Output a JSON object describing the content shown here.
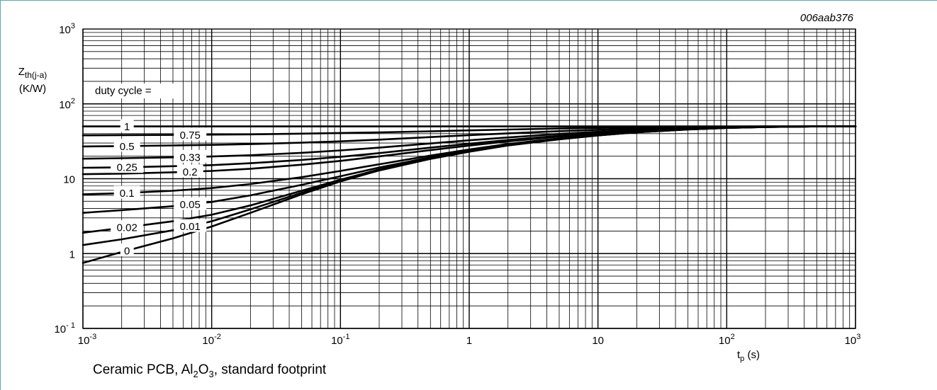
{
  "chart_data": {
    "type": "line",
    "figure_id": "006aab376",
    "caption": {
      "pre": "Ceramic PCB, Al",
      "sub1": "2",
      "mid": "O",
      "sub2": "3",
      "post": ", standard footprint"
    },
    "ylabel": {
      "line1_base": "Z",
      "line1_sub": "th(j-a)",
      "line2": "(K/W)"
    },
    "xlabel": {
      "base": "t",
      "sub": "p",
      "suffix": " (s)"
    },
    "x_scale": "log",
    "y_scale": "log",
    "xlim": [
      0.001,
      1000
    ],
    "ylim": [
      0.1,
      1000
    ],
    "grid": true,
    "x_ticks": [
      {
        "v": 0.001,
        "base": "10",
        "exp": "-3"
      },
      {
        "v": 0.01,
        "base": "10",
        "exp": "-2"
      },
      {
        "v": 0.1,
        "base": "10",
        "exp": "-1"
      },
      {
        "v": 1,
        "base": "1",
        "exp": ""
      },
      {
        "v": 10,
        "base": "10",
        "exp": ""
      },
      {
        "v": 100,
        "base": "10",
        "exp": "2"
      },
      {
        "v": 1000,
        "base": "10",
        "exp": "3"
      }
    ],
    "y_ticks": [
      {
        "v": 1000,
        "base": "10",
        "exp": "3"
      },
      {
        "v": 100,
        "base": "10",
        "exp": "2"
      },
      {
        "v": 10,
        "base": "10",
        "exp": ""
      },
      {
        "v": 1,
        "base": "1",
        "exp": ""
      },
      {
        "v": 0.1,
        "base": "10",
        "exp": "- 1"
      }
    ],
    "legend_title": "duty cycle =",
    "x": [
      0.001,
      0.002,
      0.005,
      0.01,
      0.02,
      0.05,
      0.1,
      0.2,
      0.5,
      1,
      2,
      5,
      10,
      20,
      50,
      100,
      200,
      500,
      1000
    ],
    "series": [
      {
        "name": "1",
        "label_at": 0.0022,
        "values": [
          50,
          50,
          50,
          50,
          50,
          50,
          50,
          50,
          50,
          50,
          50,
          50,
          50,
          50,
          50,
          50,
          50,
          50,
          50
        ]
      },
      {
        "name": "0.75",
        "label_at": 0.0068,
        "values": [
          38,
          38.2,
          38.5,
          38.8,
          39.2,
          40,
          40.8,
          41.6,
          43,
          44.2,
          45.4,
          46.8,
          47.8,
          48.6,
          49.3,
          49.7,
          50,
          50,
          50
        ]
      },
      {
        "name": "0.5",
        "label_at": 0.0022,
        "values": [
          27,
          27.3,
          27.8,
          28.3,
          29,
          30.3,
          31.6,
          33.3,
          36,
          38.2,
          40.4,
          43.2,
          45,
          46.7,
          48.4,
          49.2,
          49.7,
          50,
          50
        ]
      },
      {
        "name": "0.33",
        "label_at": 0.0068,
        "values": [
          18.5,
          18.8,
          19.3,
          19.8,
          20.6,
          22.2,
          23.9,
          26,
          29.6,
          32.6,
          35.6,
          39.7,
          42.4,
          44.8,
          47.3,
          48.7,
          49.5,
          50,
          50
        ]
      },
      {
        "name": "0.25",
        "label_at": 0.0022,
        "values": [
          14,
          14.2,
          14.7,
          15.2,
          16.1,
          17.8,
          19.6,
          22,
          26,
          29.3,
          32.9,
          37.5,
          40.8,
          43.7,
          46.7,
          48.4,
          49.4,
          50,
          50
        ]
      },
      {
        "name": "0.2",
        "label_at": 0.0068,
        "values": [
          11.5,
          11.7,
          12.2,
          12.7,
          13.6,
          15.4,
          17.3,
          19.9,
          24.1,
          27.7,
          31.6,
          36.5,
          40,
          43.2,
          46.4,
          48.2,
          49.3,
          50,
          50
        ]
      },
      {
        "name": "0.1",
        "label_at": 0.0022,
        "values": [
          6.2,
          6.4,
          6.9,
          7.5,
          8.5,
          10.5,
          12.7,
          15.6,
          20.4,
          24.6,
          29.1,
          34.6,
          38.6,
          42.3,
          45.9,
          48,
          49.2,
          50,
          50
        ]
      },
      {
        "name": "0.05",
        "label_at": 0.0068,
        "values": [
          3.5,
          3.8,
          4.3,
          4.9,
          6,
          8.3,
          10.8,
          14.1,
          19.3,
          23.6,
          28.4,
          34,
          38.2,
          42,
          45.7,
          47.9,
          49.1,
          50,
          50
        ]
      },
      {
        "name": "0.02",
        "label_at": 0.0022,
        "values": [
          1.9,
          2.2,
          2.7,
          3.3,
          4.4,
          6.9,
          9.7,
          13.3,
          18.7,
          23.1,
          28,
          33.8,
          38,
          41.8,
          45.6,
          47.8,
          49.1,
          50,
          50
        ]
      },
      {
        "name": "0.01",
        "label_at": 0.0068,
        "values": [
          1.3,
          1.55,
          2.05,
          2.7,
          3.9,
          6.5,
          9.4,
          13.1,
          18.5,
          23,
          27.9,
          33.7,
          37.9,
          41.8,
          45.6,
          47.8,
          49.1,
          50,
          50
        ]
      },
      {
        "name": "0",
        "label_at": 0.0022,
        "values": [
          0.75,
          1.05,
          1.6,
          2.3,
          3.5,
          6.2,
          9.2,
          12.9,
          18.4,
          22.9,
          27.8,
          33.6,
          37.9,
          41.7,
          45.5,
          47.8,
          49.1,
          50,
          50
        ]
      }
    ]
  }
}
